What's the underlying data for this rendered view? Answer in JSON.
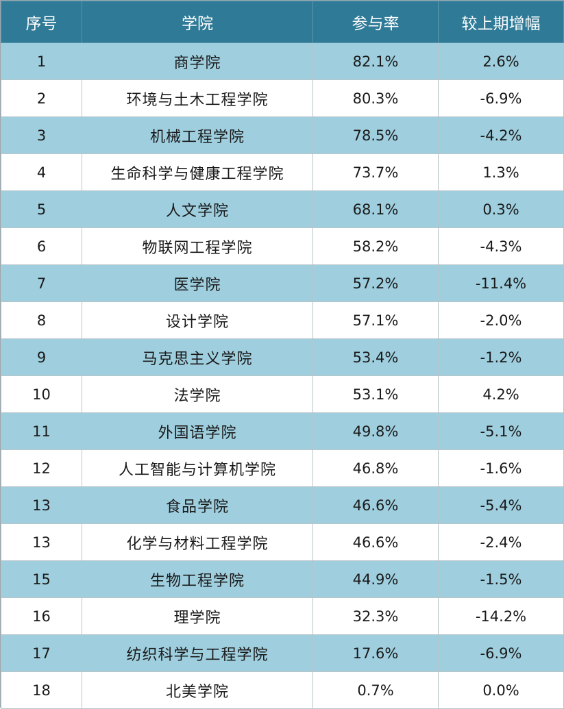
{
  "headers": [
    "序号",
    "学院",
    "参与率",
    "较上期增幅"
  ],
  "rows": [
    {
      "rank": "1",
      "college": "商学院",
      "rate": "82.1%",
      "change": "2.6%"
    },
    {
      "rank": "2",
      "college": "环境与土木工程学院",
      "rate": "80.3%",
      "change": "-6.9%"
    },
    {
      "rank": "3",
      "college": "机械工程学院",
      "rate": "78.5%",
      "change": "-4.2%"
    },
    {
      "rank": "4",
      "college": "生命科学与健康工程学院",
      "rate": "73.7%",
      "change": "1.3%"
    },
    {
      "rank": "5",
      "college": "人文学院",
      "rate": "68.1%",
      "change": "0.3%"
    },
    {
      "rank": "6",
      "college": "物联网工程学院",
      "rate": "58.2%",
      "change": "-4.3%"
    },
    {
      "rank": "7",
      "college": "医学院",
      "rate": "57.2%",
      "change": "-11.4%"
    },
    {
      "rank": "8",
      "college": "设计学院",
      "rate": "57.1%",
      "change": "-2.0%"
    },
    {
      "rank": "9",
      "college": "马克思主义学院",
      "rate": "53.4%",
      "change": "-1.2%"
    },
    {
      "rank": "10",
      "college": "法学院",
      "rate": "53.1%",
      "change": "4.2%"
    },
    {
      "rank": "11",
      "college": "外国语学院",
      "rate": "49.8%",
      "change": "-5.1%"
    },
    {
      "rank": "12",
      "college": "人工智能与计算机学院",
      "rate": "46.8%",
      "change": "-1.6%"
    },
    {
      "rank": "13",
      "college": "食品学院",
      "rate": "46.6%",
      "change": "-5.4%"
    },
    {
      "rank": "13",
      "college": "化学与材料工程学院",
      "rate": "46.6%",
      "change": "-2.4%"
    },
    {
      "rank": "15",
      "college": "生物工程学院",
      "rate": "44.9%",
      "change": "-1.5%"
    },
    {
      "rank": "16",
      "college": "理学院",
      "rate": "32.3%",
      "change": "-14.2%"
    },
    {
      "rank": "17",
      "college": "纺织科学与工程学院",
      "rate": "17.6%",
      "change": "-6.9%"
    },
    {
      "rank": "18",
      "college": "北美学院",
      "rate": "0.7%",
      "change": "0.0%"
    }
  ],
  "colors": {
    "header_bg": "#2f7a96",
    "header_text": "#ffffff",
    "stripe_bg": "#9fcfdf",
    "plain_bg": "#ffffff"
  }
}
